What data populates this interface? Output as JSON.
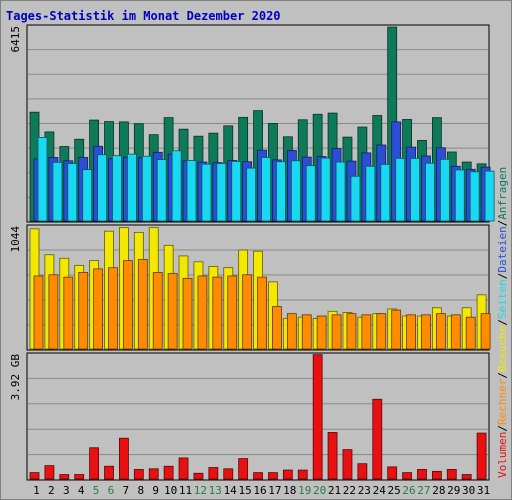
{
  "chart_data": {
    "type": "bar",
    "title": "Tages-Statistik im Monat Dezember 2020",
    "categories": [
      "1",
      "2",
      "3",
      "4",
      "5",
      "6",
      "7",
      "8",
      "9",
      "10",
      "11",
      "12",
      "13",
      "14",
      "15",
      "16",
      "17",
      "18",
      "19",
      "20",
      "21",
      "22",
      "23",
      "24",
      "25",
      "26",
      "27",
      "28",
      "29",
      "30",
      "31"
    ],
    "weekend_days": [
      "5",
      "6",
      "12",
      "13",
      "19",
      "20",
      "26",
      "27"
    ],
    "legend_right": [
      {
        "label": "Anfragen",
        "color": "#0e7a5a"
      },
      {
        "label": "Dateien",
        "color": "#2a4fd6"
      },
      {
        "label": "Seiten",
        "color": "#18d8f2"
      },
      {
        "label": "Besuche",
        "color": "#f2e800"
      },
      {
        "label": "Rechner",
        "color": "#ff8c00"
      },
      {
        "label": "Volumen",
        "color": "#e81010"
      }
    ],
    "separator": "/",
    "panels": [
      {
        "name": "requests",
        "max_label": "6415",
        "ymax": 6415,
        "series": [
          {
            "name": "Anfragen",
            "color": "#0e7a5a",
            "values": [
              3580,
              2930,
              2450,
              2690,
              3320,
              3270,
              3260,
              3200,
              2840,
              3400,
              3020,
              2790,
              2890,
              3130,
              3410,
              3630,
              3210,
              2770,
              3330,
              3510,
              3550,
              2760,
              3090,
              3470,
              6380,
              3340,
              2650,
              3400,
              2270,
              1940,
              1880
            ]
          },
          {
            "name": "Dateien",
            "color": "#2a4fd6",
            "values": [
              2040,
              2090,
              1980,
              2090,
              2460,
              2050,
              2100,
              2090,
              2260,
              2200,
              1980,
              1940,
              1920,
              1990,
              1950,
              2330,
              2010,
              2320,
              2100,
              2120,
              2380,
              1970,
              2240,
              2500,
              3260,
              2430,
              2140,
              2410,
              1800,
              1700,
              1770
            ]
          },
          {
            "name": "Seiten",
            "color": "#18d8f2",
            "values": [
              2750,
              1930,
              1890,
              1690,
              2180,
              2150,
              2200,
              2130,
              2020,
              2310,
              1990,
              1870,
              1890,
              1960,
              1740,
              2090,
              1950,
              1980,
              1820,
              2070,
              1940,
              1470,
              1800,
              1860,
              2060,
              2060,
              1900,
              2030,
              1680,
              1620,
              1640
            ]
          }
        ]
      },
      {
        "name": "visits",
        "max_label": "1044",
        "ymax": 1044,
        "series": [
          {
            "name": "Besuche",
            "color": "#f2e800",
            "values": [
              1020,
              800,
              770,
              710,
              750,
              1000,
              1030,
              990,
              1030,
              880,
              790,
              740,
              700,
              690,
              840,
              830,
              570,
              260,
              270,
              260,
              320,
              310,
              270,
              300,
              340,
              280,
              280,
              350,
              280,
              350,
              460
            ]
          },
          {
            "name": "Rechner",
            "color": "#ff8c00",
            "values": [
              620,
              630,
              610,
              650,
              680,
              690,
              750,
              760,
              650,
              640,
              600,
              620,
              610,
              620,
              630,
              610,
              360,
              300,
              290,
              280,
              290,
              300,
              290,
              300,
              330,
              290,
              290,
              300,
              290,
              270,
              300
            ]
          }
        ]
      },
      {
        "name": "volume",
        "max_label": "3.92 GB",
        "ymax": 3.92,
        "unit": "GB",
        "series": [
          {
            "name": "Volumen",
            "color": "#e81010",
            "values": [
              0.2,
              0.42,
              0.14,
              0.14,
              0.98,
              0.4,
              1.28,
              0.3,
              0.32,
              0.4,
              0.66,
              0.18,
              0.36,
              0.32,
              0.64,
              0.2,
              0.2,
              0.28,
              0.28,
              3.9,
              1.46,
              0.92,
              0.48,
              2.5,
              0.38,
              0.2,
              0.3,
              0.24,
              0.3,
              0.14,
              1.44
            ]
          }
        ]
      }
    ]
  }
}
